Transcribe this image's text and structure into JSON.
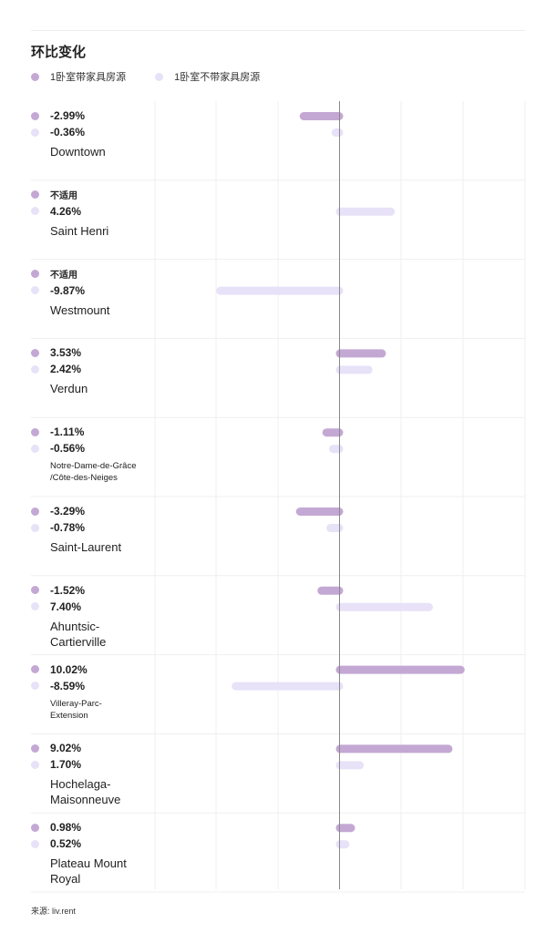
{
  "title": "环比变化",
  "legend": [
    {
      "label": "1卧室带家具房源",
      "color": "#c4a8d4"
    },
    {
      "label": "1卧室不带家具房源",
      "color": "#e7e2f7"
    }
  ],
  "chart_data": {
    "type": "bar",
    "orientation": "horizontal",
    "title": "环比变化",
    "categories": [
      "Downtown",
      "Saint Henri",
      "Westmount",
      "Verdun",
      "Notre-Dame-de-Grâce\n/Côte-des-Neiges",
      "Saint-Laurent",
      "Ahuntsic-\nCartierville",
      "Villeray-Parc-\nExtension",
      "Hochelaga-\nMaisonneuve",
      "Plateau Mount\nRoyal"
    ],
    "series": [
      {
        "name": "1卧室带家具房源",
        "color": "#c4a8d4",
        "values": [
          -2.99,
          null,
          null,
          3.53,
          -1.11,
          -3.29,
          -1.52,
          10.02,
          9.02,
          0.98
        ],
        "labels": [
          "-2.99%",
          "不适用",
          "不适用",
          "3.53%",
          "-1.11%",
          "-3.29%",
          "-1.52%",
          "10.02%",
          "9.02%",
          "0.98%"
        ]
      },
      {
        "name": "1卧室不带家具房源",
        "color": "#e7e2f7",
        "values": [
          -0.36,
          4.26,
          -9.87,
          2.42,
          -0.56,
          -0.78,
          7.4,
          -8.59,
          1.7,
          0.52
        ],
        "labels": [
          "-0.36%",
          "4.26%",
          "-9.87%",
          "2.42%",
          "-0.56%",
          "-0.78%",
          "7.40%",
          "-8.59%",
          "1.70%",
          "0.52%"
        ]
      }
    ],
    "xlim": [
      -15,
      15
    ],
    "grid": true
  },
  "source": "来源: liv.rent"
}
